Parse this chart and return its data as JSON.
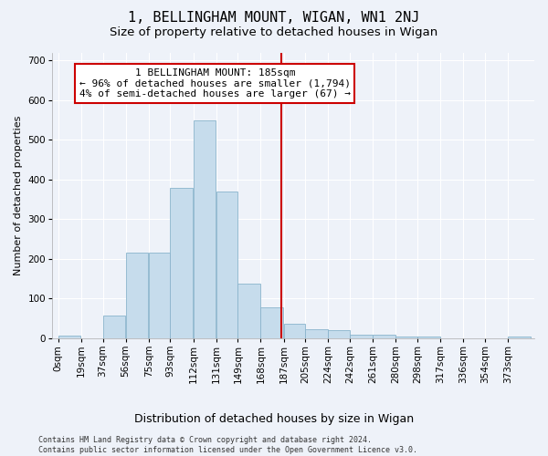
{
  "title": "1, BELLINGHAM MOUNT, WIGAN, WN1 2NJ",
  "subtitle": "Size of property relative to detached houses in Wigan",
  "xlabel": "Distribution of detached houses by size in Wigan",
  "ylabel": "Number of detached properties",
  "footer_line1": "Contains HM Land Registry data © Crown copyright and database right 2024.",
  "footer_line2": "Contains public sector information licensed under the Open Government Licence v3.0.",
  "annotation_title": "1 BELLINGHAM MOUNT: 185sqm",
  "annotation_line2": "← 96% of detached houses are smaller (1,794)",
  "annotation_line3": "4% of semi-detached houses are larger (67) →",
  "property_size": 185,
  "bar_labels": [
    "0sqm",
    "19sqm",
    "37sqm",
    "56sqm",
    "75sqm",
    "93sqm",
    "112sqm",
    "131sqm",
    "149sqm",
    "168sqm",
    "187sqm",
    "205sqm",
    "224sqm",
    "242sqm",
    "261sqm",
    "280sqm",
    "298sqm",
    "317sqm",
    "336sqm",
    "354sqm",
    "373sqm"
  ],
  "bar_left_edges": [
    0,
    19,
    37,
    56,
    75,
    93,
    112,
    131,
    149,
    168,
    187,
    205,
    224,
    242,
    261,
    280,
    298,
    317,
    336,
    354,
    373
  ],
  "bar_widths": [
    19,
    18,
    19,
    19,
    18,
    19,
    19,
    18,
    19,
    19,
    18,
    19,
    18,
    19,
    19,
    18,
    19,
    19,
    18,
    19,
    19
  ],
  "bar_heights": [
    7,
    0,
    57,
    215,
    215,
    380,
    548,
    370,
    137,
    77,
    37,
    22,
    20,
    10,
    10,
    5,
    5,
    0,
    0,
    0,
    5
  ],
  "bar_color": "#c6dcec",
  "bar_edge_color": "#8ab4cc",
  "vline_x": 185,
  "vline_color": "#cc0000",
  "annotation_box_color": "#ffffff",
  "annotation_box_edge_color": "#cc0000",
  "ylim": [
    0,
    720
  ],
  "yticks": [
    0,
    100,
    200,
    300,
    400,
    500,
    600,
    700
  ],
  "xlim_left": -5,
  "xlim_right": 395,
  "background_color": "#eef2f9",
  "plot_background_color": "#eef2f9",
  "grid_color": "#ffffff",
  "title_fontsize": 11,
  "subtitle_fontsize": 9.5,
  "xlabel_fontsize": 9,
  "ylabel_fontsize": 8,
  "tick_fontsize": 7.5,
  "annotation_fontsize": 8,
  "footer_fontsize": 6
}
